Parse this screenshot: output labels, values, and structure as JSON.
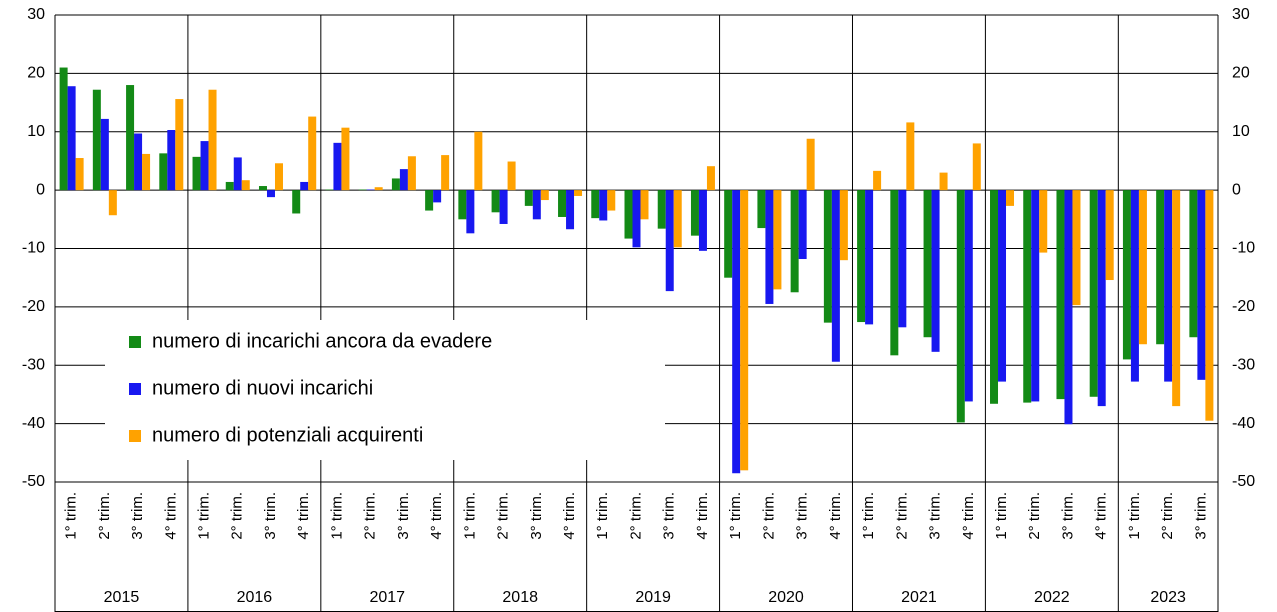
{
  "chart_data": {
    "type": "bar",
    "groups": [
      {
        "label": "2015",
        "categories": [
          "1° trim.",
          "2° trim.",
          "3° trim.",
          "4° trim."
        ]
      },
      {
        "label": "2016",
        "categories": [
          "1° trim.",
          "2° trim.",
          "3° trim.",
          "4° trim."
        ]
      },
      {
        "label": "2017",
        "categories": [
          "1° trim.",
          "2° trim.",
          "3° trim.",
          "4° trim."
        ]
      },
      {
        "label": "2018",
        "categories": [
          "1° trim.",
          "2° trim.",
          "3° trim.",
          "4° trim."
        ]
      },
      {
        "label": "2019",
        "categories": [
          "1° trim.",
          "2° trim.",
          "3° trim.",
          "4° trim."
        ]
      },
      {
        "label": "2020",
        "categories": [
          "1° trim.",
          "2° trim.",
          "3° trim.",
          "4° trim."
        ]
      },
      {
        "label": "2021",
        "categories": [
          "1° trim.",
          "2° trim.",
          "3° trim.",
          "4° trim."
        ]
      },
      {
        "label": "2022",
        "categories": [
          "1° trim.",
          "2° trim.",
          "3° trim.",
          "4° trim."
        ]
      },
      {
        "label": "2023",
        "categories": [
          "1° trim.",
          "2° trim.",
          "3° trim."
        ]
      }
    ],
    "series": [
      {
        "name": "numero di incarichi ancora da evadere",
        "color": "#138a16",
        "values": [
          21,
          17.2,
          18,
          6.3,
          5.7,
          1.4,
          0.7,
          -4,
          0.1,
          0.1,
          2,
          -3.5,
          -5,
          -3.8,
          -2.7,
          -4.6,
          -4.8,
          -8.3,
          -6.6,
          -7.8,
          -15,
          -6.5,
          -17.5,
          -22.7,
          -22.6,
          -28.3,
          -25.2,
          -39.8,
          -36.6,
          -36.4,
          -35.8,
          -35.4,
          -29,
          -26.4,
          -25.2
        ]
      },
      {
        "name": "numero di nuovi incarichi",
        "color": "#1818f0",
        "values": [
          17.8,
          12.2,
          9.7,
          10.3,
          8.4,
          5.6,
          -1.2,
          1.4,
          8.1,
          0.1,
          3.6,
          -2.1,
          -7.4,
          -5.8,
          -5,
          -6.7,
          -5.2,
          -9.8,
          -17.3,
          -10.4,
          -48.5,
          -19.5,
          -11.8,
          -29.4,
          -23,
          -23.5,
          -27.7,
          -36.2,
          -32.8,
          -36.2,
          -40.1,
          -37,
          -32.8,
          -32.8,
          -32.5
        ]
      },
      {
        "name": "numero di potenziali acquirenti",
        "color": "#ffa200",
        "values": [
          5.5,
          -4.3,
          6.2,
          15.6,
          17.2,
          1.7,
          4.6,
          12.6,
          10.7,
          0.5,
          5.8,
          6,
          10,
          4.9,
          -1.7,
          -1,
          -3.5,
          -5,
          -9.8,
          4.1,
          -48,
          -17,
          8.8,
          -12,
          3.3,
          11.6,
          3,
          8,
          -2.7,
          -10.7,
          -19.7,
          -15.4,
          -26.4,
          -37,
          -39.5
        ]
      }
    ],
    "ylim": [
      -50,
      30
    ],
    "yticks": [
      -50,
      -40,
      -30,
      -20,
      -10,
      0,
      10,
      20,
      30
    ],
    "y2lim": [
      -50,
      30
    ],
    "y2ticks": [
      -50,
      -40,
      -30,
      -20,
      -10,
      0,
      10,
      20,
      30
    ],
    "grid": true
  }
}
